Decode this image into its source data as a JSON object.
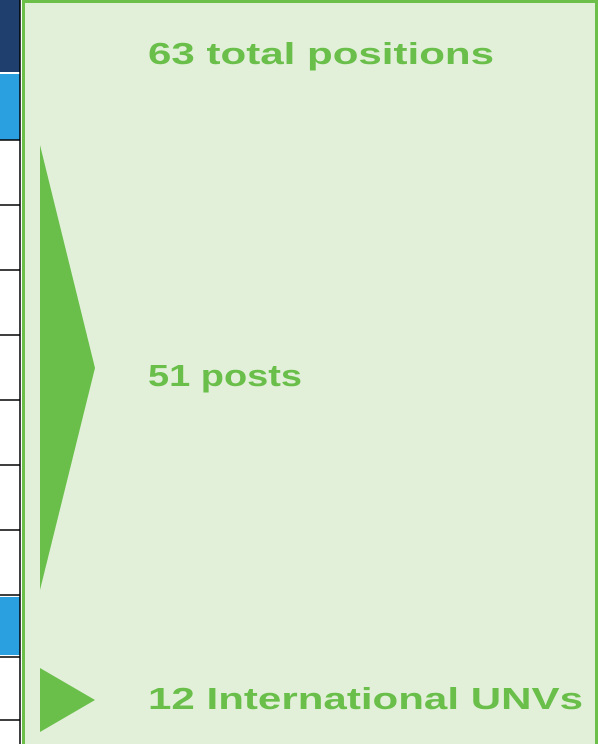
{
  "summary": {
    "total": "63 total positions"
  },
  "breakdown": [
    "51 posts",
    "12 International UNVs"
  ]
}
